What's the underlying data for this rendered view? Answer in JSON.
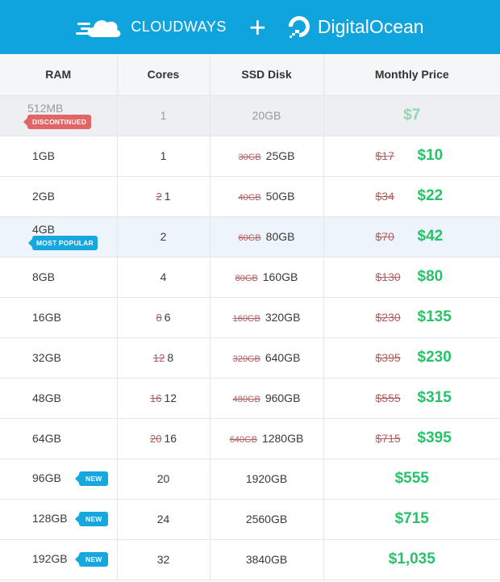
{
  "header": {
    "left_brand": "CLOUDWAYS",
    "plus": "+",
    "right_brand": "DigitalOcean"
  },
  "columns": [
    "RAM",
    "Cores",
    "SSD Disk",
    "Monthly Price"
  ],
  "rows": [
    {
      "ram": "512MB",
      "badge": "DISCONTINUED",
      "cores_old": "",
      "cores": "1",
      "disk_old": "",
      "disk": "20GB",
      "price_old": "",
      "price": "$7"
    },
    {
      "ram": "1GB",
      "badge": "",
      "cores_old": "",
      "cores": "1",
      "disk_old": "30GB",
      "disk": "25GB",
      "price_old": "$17",
      "price": "$10"
    },
    {
      "ram": "2GB",
      "badge": "",
      "cores_old": "2",
      "cores": "1",
      "disk_old": "40GB",
      "disk": "50GB",
      "price_old": "$34",
      "price": "$22"
    },
    {
      "ram": "4GB",
      "badge": "MOST POPULAR",
      "cores_old": "",
      "cores": "2",
      "disk_old": "60GB",
      "disk": "80GB",
      "price_old": "$70",
      "price": "$42"
    },
    {
      "ram": "8GB",
      "badge": "",
      "cores_old": "",
      "cores": "4",
      "disk_old": "80GB",
      "disk": "160GB",
      "price_old": "$130",
      "price": "$80"
    },
    {
      "ram": "16GB",
      "badge": "",
      "cores_old": "8",
      "cores": "6",
      "disk_old": "160GB",
      "disk": "320GB",
      "price_old": "$230",
      "price": "$135"
    },
    {
      "ram": "32GB",
      "badge": "",
      "cores_old": "12",
      "cores": "8",
      "disk_old": "320GB",
      "disk": "640GB",
      "price_old": "$395",
      "price": "$230"
    },
    {
      "ram": "48GB",
      "badge": "",
      "cores_old": "16",
      "cores": "12",
      "disk_old": "480GB",
      "disk": "960GB",
      "price_old": "$555",
      "price": "$315"
    },
    {
      "ram": "64GB",
      "badge": "",
      "cores_old": "20",
      "cores": "16",
      "disk_old": "640GB",
      "disk": "1280GB",
      "price_old": "$715",
      "price": "$395"
    },
    {
      "ram": "96GB",
      "badge": "NEW",
      "cores_old": "",
      "cores": "20",
      "disk_old": "",
      "disk": "1920GB",
      "price_old": "",
      "price": "$555"
    },
    {
      "ram": "128GB",
      "badge": "NEW",
      "cores_old": "",
      "cores": "24",
      "disk_old": "",
      "disk": "2560GB",
      "price_old": "",
      "price": "$715"
    },
    {
      "ram": "192GB",
      "badge": "NEW",
      "cores_old": "",
      "cores": "32",
      "disk_old": "",
      "disk": "3840GB",
      "price_old": "",
      "price": "$1,035"
    }
  ],
  "colors": {
    "banner": "#10a4de",
    "price_green": "#27c26a",
    "strike_red": "#b06060",
    "badge_red": "#e06666",
    "badge_blue": "#17a7df"
  },
  "icons": {
    "left_logo": "cloudways-cloud-icon",
    "right_logo": "digitalocean-icon"
  }
}
